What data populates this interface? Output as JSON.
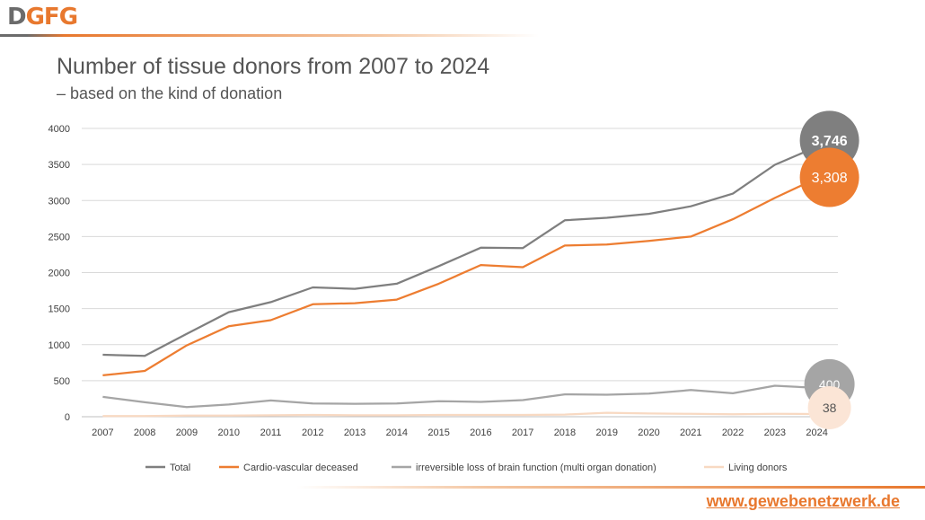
{
  "logo": {
    "part1": "D",
    "part2": "GFG"
  },
  "title": "Number of tissue donors from 2007 to 2024",
  "subtitle": "– based on the kind of donation",
  "url": "www.gewebenetzwerk.de",
  "colors": {
    "total": "#7f7f7f",
    "cardio": "#ed7d31",
    "brain": "#a5a5a5",
    "living": "#f8d9c2",
    "accent": "#e8782e"
  },
  "chart_data": {
    "type": "line",
    "title": "Number of tissue donors from 2007 to 2024",
    "ylim": [
      0,
      4000
    ],
    "yticks": [
      "0",
      "500",
      "1000",
      "1500",
      "2000",
      "2500",
      "3000",
      "3500",
      "4000"
    ],
    "categories": [
      "2007",
      "2008",
      "2009",
      "2010",
      "2011",
      "2012",
      "2013",
      "2014",
      "2015",
      "2016",
      "2017",
      "2018",
      "2019",
      "2020",
      "2021",
      "2022",
      "2023",
      "2024"
    ],
    "legend_position": "bottom",
    "series": [
      {
        "name": "Total",
        "color": "#7f7f7f",
        "end_label": "3,746",
        "values": [
          860,
          845,
          1150,
          1450,
          1590,
          1795,
          1775,
          1845,
          2090,
          2345,
          2340,
          2725,
          2760,
          2815,
          2920,
          3095,
          3495,
          3746
        ]
      },
      {
        "name": "Cardio-vascular deceased",
        "color": "#ed7d31",
        "end_label": "3,308",
        "values": [
          575,
          635,
          990,
          1255,
          1340,
          1560,
          1575,
          1625,
          1845,
          2105,
          2075,
          2375,
          2390,
          2440,
          2500,
          2740,
          3035,
          3308
        ]
      },
      {
        "name": "irreversible loss of brain function (multi organ donation)",
        "color": "#a5a5a5",
        "end_label": "400",
        "values": [
          275,
          200,
          135,
          170,
          225,
          185,
          180,
          185,
          215,
          205,
          230,
          310,
          305,
          320,
          370,
          325,
          430,
          400
        ]
      },
      {
        "name": "Living donors",
        "color": "#f8d9c2",
        "end_label": "38",
        "values": [
          10,
          10,
          15,
          15,
          20,
          25,
          20,
          20,
          25,
          25,
          25,
          30,
          55,
          45,
          40,
          35,
          40,
          38
        ]
      }
    ]
  }
}
